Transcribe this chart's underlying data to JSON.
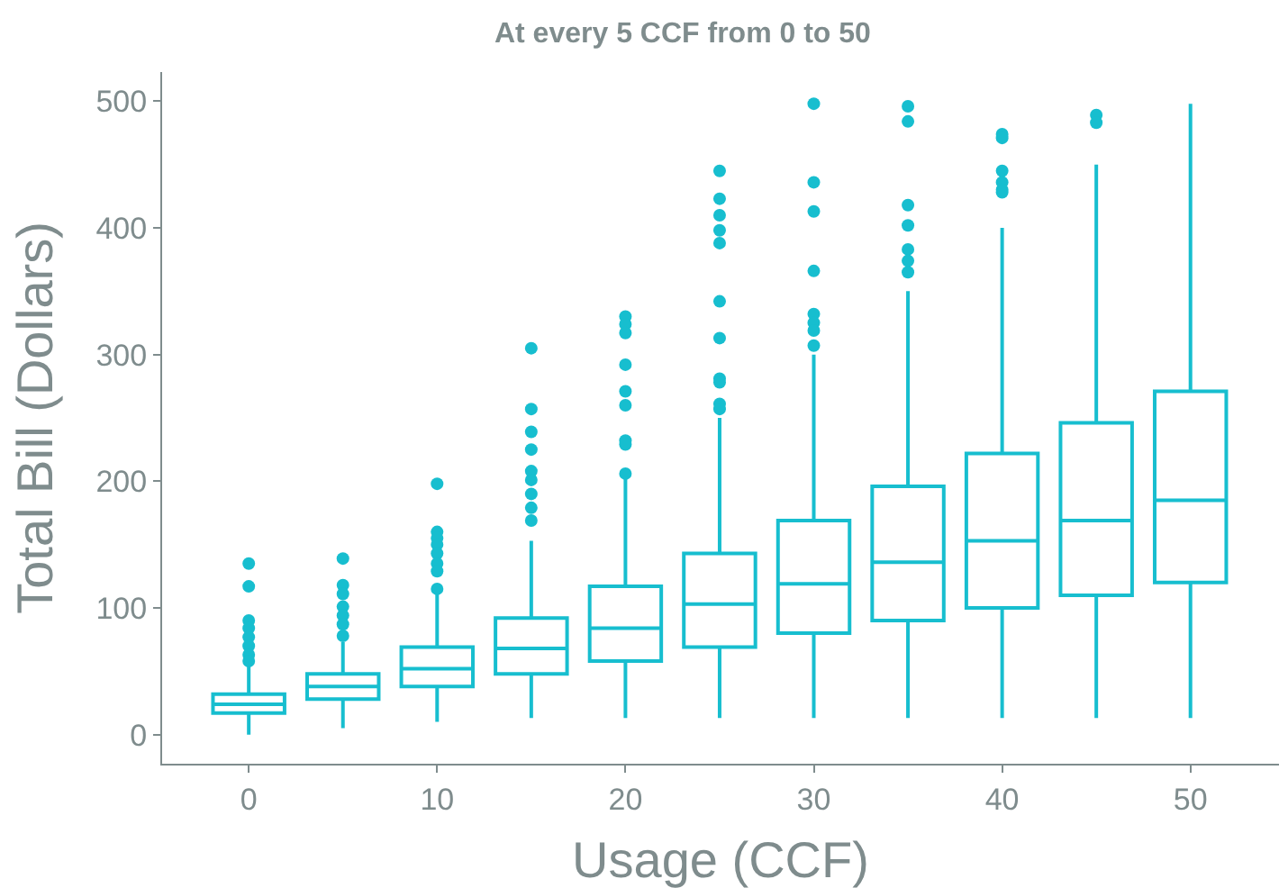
{
  "chart_data": {
    "type": "box",
    "title": "At every 5 CCF from 0 to 50",
    "xlabel": "Usage (CCF)",
    "ylabel": "Total Bill (Dollars)",
    "x": [
      0,
      5,
      10,
      15,
      20,
      25,
      30,
      35,
      40,
      45,
      50
    ],
    "color": "#17becf",
    "boxes": [
      {
        "low": 0,
        "q1": 17,
        "median": 24,
        "q3": 32,
        "high": 55,
        "outliers": [
          135,
          117,
          90,
          84,
          77,
          70,
          63,
          58
        ]
      },
      {
        "low": 5,
        "q1": 28,
        "median": 38,
        "q3": 48,
        "high": 73,
        "outliers": [
          139,
          118,
          111,
          101,
          94,
          87,
          78
        ]
      },
      {
        "low": 10,
        "q1": 38,
        "median": 52,
        "q3": 69,
        "high": 111,
        "outliers": [
          198,
          160,
          155,
          150,
          143,
          135,
          129,
          115
        ]
      },
      {
        "low": 13,
        "q1": 48,
        "median": 68,
        "q3": 92,
        "high": 153,
        "outliers": [
          305,
          257,
          239,
          225,
          208,
          201,
          190,
          179,
          169
        ]
      },
      {
        "low": 13,
        "q1": 58,
        "median": 84,
        "q3": 117,
        "high": 204,
        "outliers": [
          330,
          324,
          317,
          292,
          271,
          260,
          232,
          229,
          206
        ]
      },
      {
        "low": 13,
        "q1": 69,
        "median": 103,
        "q3": 143,
        "high": 250,
        "outliers": [
          445,
          423,
          410,
          398,
          388,
          342,
          313,
          281,
          278,
          261,
          257
        ]
      },
      {
        "low": 13,
        "q1": 80,
        "median": 119,
        "q3": 169,
        "high": 300,
        "outliers": [
          498,
          436,
          413,
          366,
          332,
          325,
          319,
          307
        ]
      },
      {
        "low": 13,
        "q1": 90,
        "median": 136,
        "q3": 196,
        "high": 350,
        "outliers": [
          496,
          484,
          418,
          402,
          383,
          374,
          365
        ]
      },
      {
        "low": 13,
        "q1": 100,
        "median": 153,
        "q3": 222,
        "high": 400,
        "outliers": [
          474,
          471,
          445,
          436,
          430,
          428
        ]
      },
      {
        "low": 13,
        "q1": 110,
        "median": 169,
        "q3": 246,
        "high": 450,
        "outliers": [
          489,
          483
        ]
      },
      {
        "low": 13,
        "q1": 120,
        "median": 185,
        "q3": 271,
        "high": 498
      }
    ],
    "xlim": [
      -4.6,
      54.7
    ],
    "xticks": [
      0,
      10,
      20,
      30,
      40,
      50
    ],
    "ylim": [
      -23,
      523
    ],
    "yticks": [
      0,
      100,
      200,
      300,
      400,
      500
    ]
  }
}
